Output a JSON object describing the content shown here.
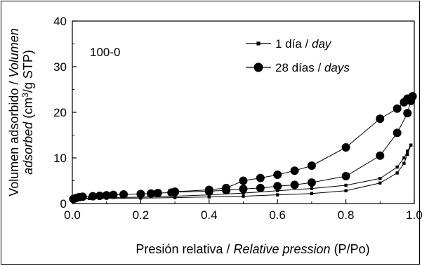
{
  "chart_data": {
    "type": "line",
    "annotation": "100-0",
    "xlabel": {
      "plain": "Presión relativa / ",
      "italic": "Relative pression",
      "suffix": " (P/Po)"
    },
    "ylabel": {
      "line1_plain": "Volumen adsorbido / ",
      "line1_italic": "Volumen",
      "line2_italic": "adsorbed",
      "line2_plain_a": " (cm",
      "line2_sup": "3",
      "line2_plain_b": "/g STP)"
    },
    "xlim": [
      0,
      1.0
    ],
    "ylim": [
      0,
      40
    ],
    "xticks": [
      "0.0",
      "0.2",
      "0.4",
      "0.6",
      "0.8",
      "1.0"
    ],
    "yticks": [
      "0",
      "10",
      "20",
      "30",
      "40"
    ],
    "x_tick_values": [
      0,
      0.2,
      0.4,
      0.6,
      0.8,
      1.0
    ],
    "y_tick_values": [
      0,
      10,
      20,
      30,
      40
    ],
    "legend_position": "top-right",
    "series": [
      {
        "label_plain": "1 día / ",
        "label_italic": "day",
        "marker": "square",
        "color": "#000000",
        "adsorption": {
          "x": [
            0.005,
            0.01,
            0.02,
            0.05,
            0.1,
            0.2,
            0.3,
            0.4,
            0.5,
            0.6,
            0.7,
            0.8,
            0.9,
            0.95,
            0.97,
            0.98,
            0.99
          ],
          "y": [
            0.8,
            0.9,
            1.0,
            1.1,
            1.15,
            1.2,
            1.3,
            1.45,
            1.6,
            1.9,
            2.2,
            2.8,
            4.5,
            6.7,
            8.8,
            10.8,
            12.8
          ]
        },
        "desorption": {
          "x": [
            0.99,
            0.98,
            0.97,
            0.95,
            0.9,
            0.8,
            0.7,
            0.6,
            0.5,
            0.4,
            0.3,
            0.2,
            0.1,
            0.05,
            0.02
          ],
          "y": [
            12.8,
            11.5,
            10.0,
            8.0,
            5.5,
            4.0,
            3.3,
            2.8,
            2.3,
            1.9,
            1.6,
            1.4,
            1.3,
            1.2,
            1.1
          ]
        }
      },
      {
        "label_plain": "28 días / ",
        "label_italic": "days",
        "marker": "circle",
        "color": "#000000",
        "adsorption": {
          "x": [
            0.003,
            0.01,
            0.02,
            0.03,
            0.06,
            0.08,
            0.1,
            0.12,
            0.15,
            0.2,
            0.23,
            0.25,
            0.29,
            0.3,
            0.4,
            0.45,
            0.5,
            0.55,
            0.6,
            0.65,
            0.7,
            0.8,
            0.9,
            0.95,
            0.98,
            0.99,
            0.995
          ],
          "y": [
            1.0,
            1.2,
            1.4,
            1.5,
            1.6,
            1.7,
            1.8,
            1.9,
            2.0,
            2.1,
            2.2,
            2.3,
            2.4,
            2.5,
            2.7,
            2.9,
            3.2,
            3.4,
            3.8,
            4.1,
            4.6,
            6.0,
            10.5,
            15.5,
            19.8,
            22.5,
            23.5
          ]
        },
        "desorption": {
          "x": [
            0.995,
            0.98,
            0.97,
            0.95,
            0.9,
            0.8,
            0.7,
            0.65,
            0.6,
            0.55,
            0.5,
            0.45,
            0.4,
            0.3
          ],
          "y": [
            23.5,
            23.0,
            22.2,
            20.8,
            18.6,
            12.3,
            8.3,
            7.2,
            6.3,
            5.6,
            5.0,
            3.4,
            3.0,
            2.6
          ]
        }
      }
    ]
  }
}
